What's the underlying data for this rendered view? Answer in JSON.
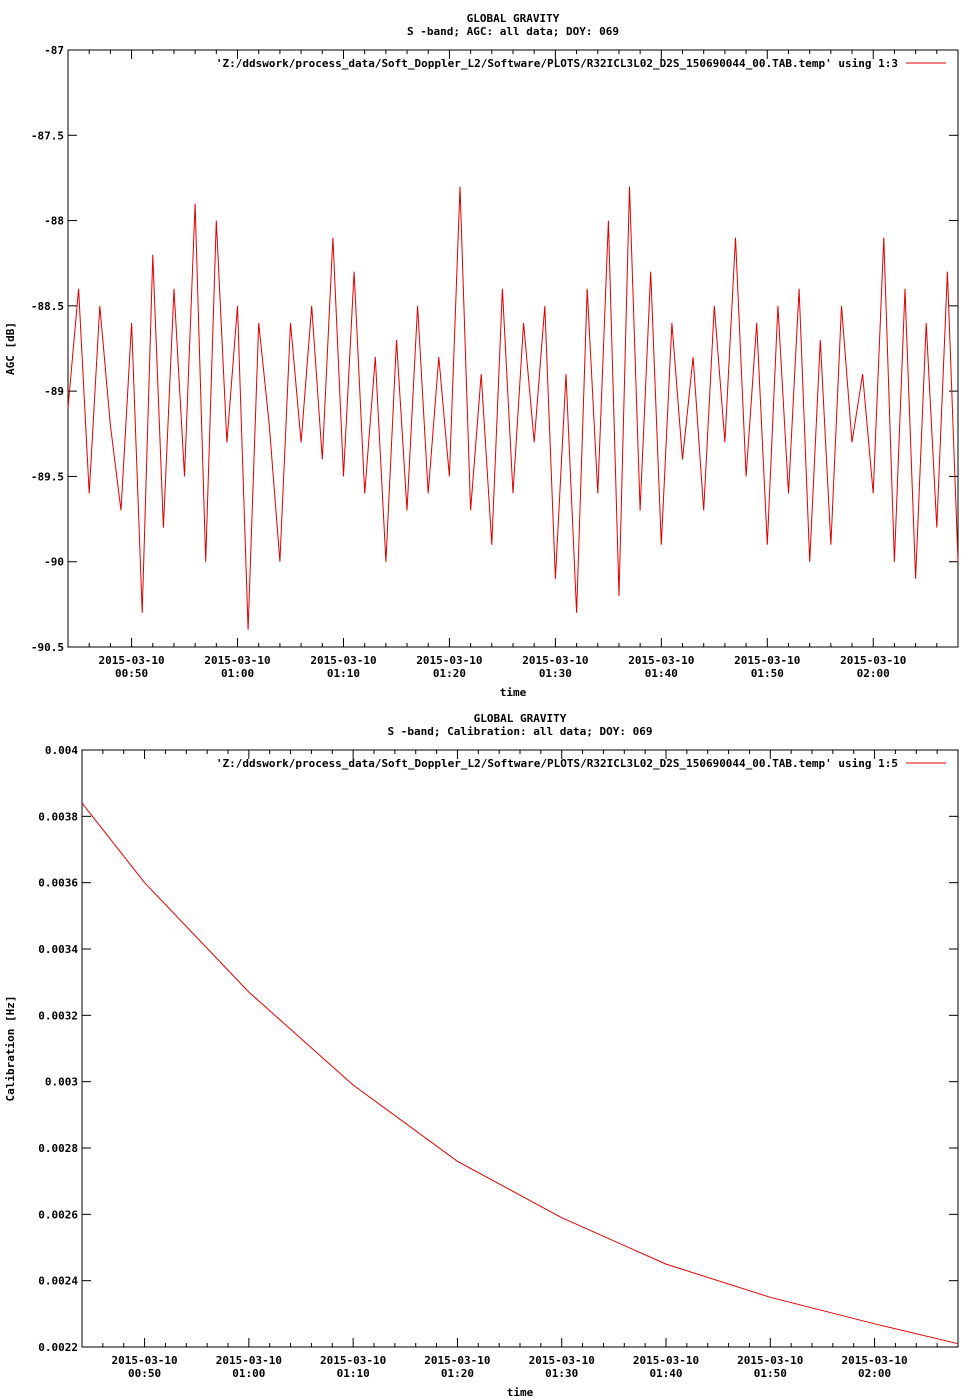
{
  "chart_data": [
    {
      "type": "line",
      "title": "GLOBAL GRAVITY",
      "subtitle": "S -band; AGC: all data; DOY: 069",
      "xlabel": "time",
      "ylabel": "AGC [dB]",
      "xlim": [
        "2015-03-10 00:44",
        "2015-03-10 02:08"
      ],
      "ylim": [
        -90.5,
        -87
      ],
      "yticks": [
        -87,
        -87.5,
        -88,
        -88.5,
        -89,
        -89.5,
        -90,
        -90.5
      ],
      "ytick_labels": [
        "-87",
        "-87.5",
        "-88",
        "-88.5",
        "-89",
        "-89.5",
        "-90",
        "-90.5"
      ],
      "xticks": [
        "2015-03-10 00:50",
        "2015-03-10 01:00",
        "2015-03-10 01:10",
        "2015-03-10 01:20",
        "2015-03-10 01:30",
        "2015-03-10 01:40",
        "2015-03-10 01:50",
        "2015-03-10 02:00"
      ],
      "xtick_labels": [
        [
          "2015-03-10",
          "00:50"
        ],
        [
          "2015-03-10",
          "01:00"
        ],
        [
          "2015-03-10",
          "01:10"
        ],
        [
          "2015-03-10",
          "01:20"
        ],
        [
          "2015-03-10",
          "01:30"
        ],
        [
          "2015-03-10",
          "01:40"
        ],
        [
          "2015-03-10",
          "01:50"
        ],
        [
          "2015-03-10",
          "02:00"
        ]
      ],
      "grid": false,
      "legend": "top-right",
      "series": [
        {
          "name": "'Z:/ddswork/process_data/Soft_Doppler_L2/Software/PLOTS/R32ICL3L02_D2S_150690044_00.TAB.temp' using 1:3",
          "color": "#e00000",
          "x": [
            "2015-03-10 00:44",
            "2015-03-10 00:45",
            "2015-03-10 00:46",
            "2015-03-10 00:47",
            "2015-03-10 00:48",
            "2015-03-10 00:49",
            "2015-03-10 00:50",
            "2015-03-10 00:51",
            "2015-03-10 00:52",
            "2015-03-10 00:53",
            "2015-03-10 00:54",
            "2015-03-10 00:55",
            "2015-03-10 00:56",
            "2015-03-10 00:57",
            "2015-03-10 00:58",
            "2015-03-10 00:59",
            "2015-03-10 01:00",
            "2015-03-10 01:01",
            "2015-03-10 01:02",
            "2015-03-10 01:03",
            "2015-03-10 01:04",
            "2015-03-10 01:05",
            "2015-03-10 01:06",
            "2015-03-10 01:07",
            "2015-03-10 01:08",
            "2015-03-10 01:09",
            "2015-03-10 01:10",
            "2015-03-10 01:11",
            "2015-03-10 01:12",
            "2015-03-10 01:13",
            "2015-03-10 01:14",
            "2015-03-10 01:15",
            "2015-03-10 01:16",
            "2015-03-10 01:17",
            "2015-03-10 01:18",
            "2015-03-10 01:19",
            "2015-03-10 01:20",
            "2015-03-10 01:21",
            "2015-03-10 01:22",
            "2015-03-10 01:23",
            "2015-03-10 01:24",
            "2015-03-10 01:25",
            "2015-03-10 01:26",
            "2015-03-10 01:27",
            "2015-03-10 01:28",
            "2015-03-10 01:29",
            "2015-03-10 01:30",
            "2015-03-10 01:31",
            "2015-03-10 01:32",
            "2015-03-10 01:33",
            "2015-03-10 01:34",
            "2015-03-10 01:35",
            "2015-03-10 01:36",
            "2015-03-10 01:37",
            "2015-03-10 01:38",
            "2015-03-10 01:39",
            "2015-03-10 01:40",
            "2015-03-10 01:41",
            "2015-03-10 01:42",
            "2015-03-10 01:43",
            "2015-03-10 01:44",
            "2015-03-10 01:45",
            "2015-03-10 01:46",
            "2015-03-10 01:47",
            "2015-03-10 01:48",
            "2015-03-10 01:49",
            "2015-03-10 01:50",
            "2015-03-10 01:51",
            "2015-03-10 01:52",
            "2015-03-10 01:53",
            "2015-03-10 01:54",
            "2015-03-10 01:55",
            "2015-03-10 01:56",
            "2015-03-10 01:57",
            "2015-03-10 01:58",
            "2015-03-10 01:59",
            "2015-03-10 02:00",
            "2015-03-10 02:01",
            "2015-03-10 02:02",
            "2015-03-10 02:03",
            "2015-03-10 02:04",
            "2015-03-10 02:05",
            "2015-03-10 02:06",
            "2015-03-10 02:07",
            "2015-03-10 02:08"
          ],
          "y": [
            -89.1,
            -88.4,
            -89.6,
            -88.5,
            -89.2,
            -89.7,
            -88.6,
            -90.3,
            -88.2,
            -89.8,
            -88.4,
            -89.5,
            -87.9,
            -90.0,
            -88.0,
            -89.3,
            -88.5,
            -90.4,
            -88.6,
            -89.2,
            -90.0,
            -88.6,
            -89.3,
            -88.5,
            -89.4,
            -88.1,
            -89.5,
            -88.3,
            -89.6,
            -88.8,
            -90.0,
            -88.7,
            -89.7,
            -88.5,
            -89.6,
            -88.8,
            -89.5,
            -87.8,
            -89.7,
            -88.9,
            -89.9,
            -88.4,
            -89.6,
            -88.6,
            -89.3,
            -88.5,
            -90.1,
            -88.9,
            -90.3,
            -88.4,
            -89.6,
            -88.0,
            -90.2,
            -87.8,
            -89.7,
            -88.3,
            -89.9,
            -88.6,
            -89.4,
            -88.8,
            -89.7,
            -88.5,
            -89.3,
            -88.1,
            -89.5,
            -88.6,
            -89.9,
            -88.5,
            -89.6,
            -88.4,
            -90.0,
            -88.7,
            -89.9,
            -88.5,
            -89.3,
            -88.9,
            -89.6,
            -88.1,
            -90.0,
            -88.4,
            -90.1,
            -88.6,
            -89.8,
            -88.3,
            -90.0
          ]
        }
      ]
    },
    {
      "type": "line",
      "title": "GLOBAL GRAVITY",
      "subtitle": "S -band; Calibration: all data; DOY: 069",
      "xlabel": "time",
      "ylabel": "Calibration [Hz]",
      "xlim": [
        "2015-03-10 00:44",
        "2015-03-10 02:08"
      ],
      "ylim": [
        0.0022,
        0.004
      ],
      "yticks": [
        0.004,
        0.0038,
        0.0036,
        0.0034,
        0.0032,
        0.003,
        0.0028,
        0.0026,
        0.0024,
        0.0022
      ],
      "ytick_labels": [
        "0.004",
        "0.0038",
        "0.0036",
        "0.0034",
        "0.0032",
        "0.003",
        "0.0028",
        "0.0026",
        "0.0024",
        "0.0022"
      ],
      "xticks": [
        "2015-03-10 00:50",
        "2015-03-10 01:00",
        "2015-03-10 01:10",
        "2015-03-10 01:20",
        "2015-03-10 01:30",
        "2015-03-10 01:40",
        "2015-03-10 01:50",
        "2015-03-10 02:00"
      ],
      "xtick_labels": [
        [
          "2015-03-10",
          "00:50"
        ],
        [
          "2015-03-10",
          "01:00"
        ],
        [
          "2015-03-10",
          "01:10"
        ],
        [
          "2015-03-10",
          "01:20"
        ],
        [
          "2015-03-10",
          "01:30"
        ],
        [
          "2015-03-10",
          "01:40"
        ],
        [
          "2015-03-10",
          "01:50"
        ],
        [
          "2015-03-10",
          "02:00"
        ]
      ],
      "grid": false,
      "legend": "top-right",
      "series": [
        {
          "name": "'Z:/ddswork/process_data/Soft_Doppler_L2/Software/PLOTS/R32ICL3L02_D2S_150690044_00.TAB.temp' using 1:5",
          "color": "#e00000",
          "x": [
            "2015-03-10 00:44",
            "2015-03-10 00:50",
            "2015-03-10 01:00",
            "2015-03-10 01:10",
            "2015-03-10 01:20",
            "2015-03-10 01:30",
            "2015-03-10 01:40",
            "2015-03-10 01:50",
            "2015-03-10 02:00",
            "2015-03-10 02:08"
          ],
          "y": [
            0.00384,
            0.0036,
            0.00327,
            0.00299,
            0.00276,
            0.00259,
            0.00245,
            0.00235,
            0.00227,
            0.00221
          ]
        }
      ]
    }
  ]
}
